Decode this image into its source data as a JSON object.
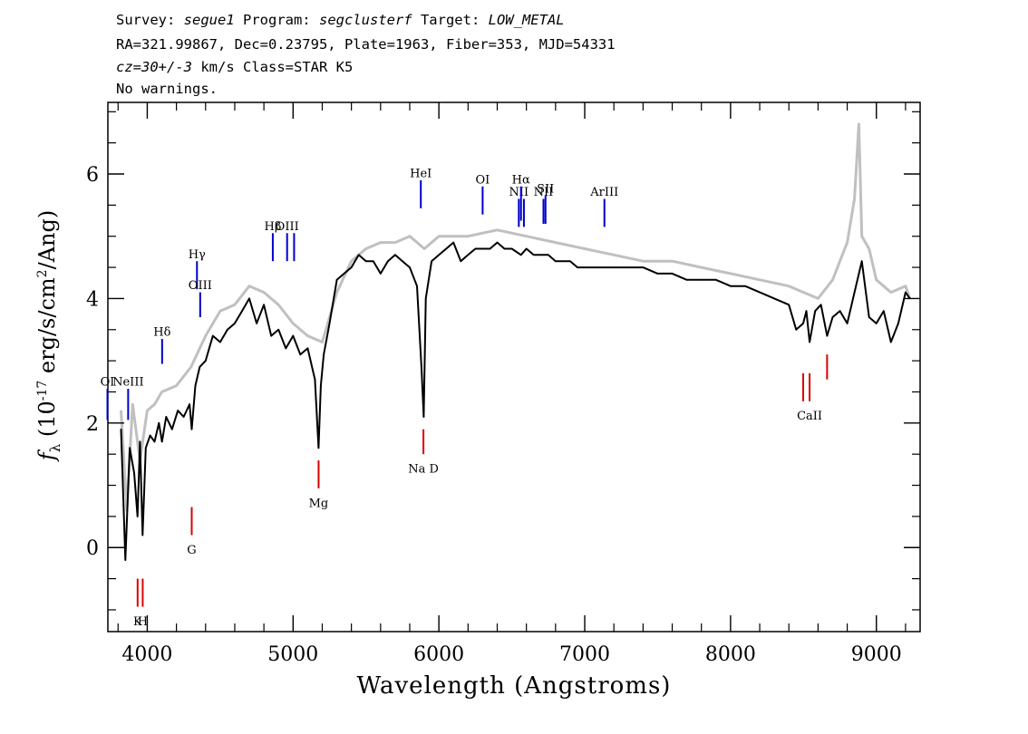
{
  "header": {
    "line1": {
      "survey_label": "Survey: ",
      "survey": "segue1",
      "program_label": " Program: ",
      "program": "segclusterf",
      "target_label": " Target: ",
      "target": "LOW_METAL"
    },
    "line2": "RA=321.99867, Dec=0.23795, Plate=1963, Fiber=353, MJD=54331",
    "line3": {
      "cz": "cz=30+/-3",
      "rest": " km/s Class=STAR K5"
    },
    "line4": "No warnings."
  },
  "colors": {
    "flux": "#000000",
    "noise": "#c0c0c0",
    "emission": "#0000cc",
    "absorption": "#dd0000",
    "axes": "#000000"
  },
  "chart_data": {
    "type": "line",
    "xlabel": "Wavelength (Angstroms)",
    "ylabel": {
      "prefix": "f",
      "subscript": "λ",
      "unit_pre": " (10",
      "exp": "-17",
      "unit_mid": " erg/s/cm",
      "exp2": "2",
      "unit_post": "/Ang)"
    },
    "xlim": [
      3730,
      9300
    ],
    "ylim": [
      -1.35,
      7.15
    ],
    "x_ticks": [
      4000,
      5000,
      6000,
      7000,
      8000,
      9000
    ],
    "y_ticks": [
      0,
      2,
      4,
      6
    ],
    "series": [
      {
        "role": "flux",
        "x": [
          3820,
          3850,
          3880,
          3910,
          3933,
          3950,
          3968,
          3990,
          4020,
          4050,
          4080,
          4101,
          4130,
          4170,
          4210,
          4250,
          4290,
          4305,
          4330,
          4360,
          4400,
          4450,
          4500,
          4550,
          4600,
          4650,
          4700,
          4750,
          4800,
          4850,
          4900,
          4950,
          5000,
          5050,
          5100,
          5150,
          5175,
          5190,
          5210,
          5250,
          5300,
          5350,
          5400,
          5450,
          5500,
          5550,
          5600,
          5650,
          5700,
          5750,
          5800,
          5850,
          5880,
          5896,
          5910,
          5950,
          6000,
          6050,
          6100,
          6150,
          6200,
          6250,
          6300,
          6350,
          6400,
          6450,
          6500,
          6563,
          6600,
          6650,
          6700,
          6750,
          6800,
          6850,
          6900,
          6950,
          7000,
          7100,
          7200,
          7300,
          7400,
          7500,
          7600,
          7700,
          7800,
          7900,
          8000,
          8100,
          8200,
          8300,
          8400,
          8450,
          8498,
          8520,
          8542,
          8580,
          8620,
          8662,
          8700,
          8750,
          8800,
          8850,
          8900,
          8950,
          9000,
          9050,
          9100,
          9150,
          9200,
          9230
        ],
        "y": [
          1.9,
          -0.2,
          1.6,
          1.2,
          0.5,
          1.7,
          0.2,
          1.6,
          1.8,
          1.7,
          2.0,
          1.7,
          2.1,
          1.9,
          2.2,
          2.1,
          2.3,
          1.9,
          2.6,
          2.9,
          3.0,
          3.4,
          3.3,
          3.5,
          3.6,
          3.8,
          4.0,
          3.6,
          3.9,
          3.4,
          3.5,
          3.2,
          3.4,
          3.1,
          3.2,
          2.7,
          1.6,
          2.6,
          3.1,
          3.6,
          4.3,
          4.4,
          4.5,
          4.7,
          4.6,
          4.6,
          4.4,
          4.6,
          4.7,
          4.6,
          4.5,
          4.2,
          2.9,
          2.1,
          4.0,
          4.6,
          4.7,
          4.8,
          4.9,
          4.6,
          4.7,
          4.8,
          4.8,
          4.8,
          4.9,
          4.8,
          4.8,
          4.7,
          4.8,
          4.7,
          4.7,
          4.7,
          4.6,
          4.6,
          4.6,
          4.5,
          4.5,
          4.5,
          4.5,
          4.5,
          4.5,
          4.4,
          4.4,
          4.3,
          4.3,
          4.3,
          4.2,
          4.2,
          4.1,
          4.0,
          3.9,
          3.5,
          3.6,
          3.8,
          3.3,
          3.8,
          3.9,
          3.4,
          3.7,
          3.8,
          3.6,
          4.1,
          4.6,
          3.7,
          3.6,
          3.8,
          3.3,
          3.6,
          4.1,
          4.0
        ]
      },
      {
        "role": "noise",
        "x": [
          3820,
          3860,
          3900,
          3950,
          4000,
          4050,
          4100,
          4200,
          4300,
          4400,
          4500,
          4600,
          4700,
          4800,
          4900,
          5000,
          5100,
          5200,
          5300,
          5400,
          5500,
          5600,
          5700,
          5800,
          5900,
          6000,
          6200,
          6400,
          6600,
          6800,
          7000,
          7200,
          7400,
          7600,
          7800,
          8000,
          8200,
          8400,
          8500,
          8600,
          8700,
          8800,
          8850,
          8880,
          8900,
          8950,
          9000,
          9100,
          9200,
          9230
        ],
        "y": [
          2.2,
          0.6,
          2.3,
          1.4,
          2.2,
          2.3,
          2.5,
          2.6,
          2.9,
          3.4,
          3.8,
          3.9,
          4.2,
          4.1,
          3.9,
          3.6,
          3.4,
          3.3,
          4.1,
          4.6,
          4.8,
          4.9,
          4.9,
          5.0,
          4.8,
          5.0,
          5.0,
          5.1,
          5.0,
          4.9,
          4.8,
          4.7,
          4.6,
          4.6,
          4.5,
          4.4,
          4.3,
          4.2,
          4.1,
          4.0,
          4.3,
          4.9,
          5.6,
          6.8,
          5.0,
          4.8,
          4.3,
          4.1,
          4.2,
          4.0
        ]
      }
    ],
    "lines": [
      {
        "label": "OI",
        "x": 3727,
        "kind": "emission",
        "ymin": 2.05,
        "ymax": 2.55,
        "label_y": 2.6
      },
      {
        "label": "NeIII",
        "x": 3869,
        "kind": "emission",
        "ymin": 2.05,
        "ymax": 2.55,
        "label_y": 2.6
      },
      {
        "label": "Hδ",
        "x": 4102,
        "kind": "emission",
        "ymin": 2.95,
        "ymax": 3.35,
        "label_y": 3.4
      },
      {
        "label": "Hγ",
        "x": 4341,
        "kind": "emission",
        "ymin": 4.15,
        "ymax": 4.6,
        "label_y": 4.65
      },
      {
        "label": "OIII",
        "x": 4363,
        "kind": "emission",
        "ymin": 3.7,
        "ymax": 4.1,
        "label_y": 4.15
      },
      {
        "label": "Hβ",
        "x": 4861,
        "kind": "emission",
        "ymin": 4.6,
        "ymax": 5.05,
        "label_y": 5.1
      },
      {
        "label": "OIII",
        "x": 4959,
        "kind": "emission",
        "ymin": 4.6,
        "ymax": 5.05,
        "label_y": 5.1
      },
      {
        "label": "",
        "x": 5007,
        "kind": "emission",
        "ymin": 4.6,
        "ymax": 5.05,
        "label_y": 5.1
      },
      {
        "label": "HeI",
        "x": 5876,
        "kind": "emission",
        "ymin": 5.45,
        "ymax": 5.9,
        "label_y": 5.95
      },
      {
        "label": "OI",
        "x": 6300,
        "kind": "emission",
        "ymin": 5.35,
        "ymax": 5.8,
        "label_y": 5.85
      },
      {
        "label": "NII",
        "x": 6548,
        "kind": "emission",
        "ymin": 5.15,
        "ymax": 5.6,
        "label_y": 5.65
      },
      {
        "label": "Hα",
        "x": 6563,
        "kind": "emission",
        "ymin": 5.25,
        "ymax": 5.8,
        "label_y": 5.85
      },
      {
        "label": "",
        "x": 6583,
        "kind": "emission",
        "ymin": 5.15,
        "ymax": 5.6,
        "label_y": 5.65
      },
      {
        "label": "NII",
        "x": 6717,
        "kind": "emission",
        "ymin": 5.2,
        "ymax": 5.6,
        "label_y": 5.65
      },
      {
        "label": "SII",
        "x": 6731,
        "kind": "emission",
        "ymin": 5.2,
        "ymax": 5.65,
        "label_y": 5.7
      },
      {
        "label": "ArIII",
        "x": 7135,
        "kind": "emission",
        "ymin": 5.15,
        "ymax": 5.6,
        "label_y": 5.65
      },
      {
        "label": "K",
        "x": 3934,
        "kind": "absorption",
        "ymin": -0.95,
        "ymax": -0.5,
        "label_y": -1.1
      },
      {
        "label": "H",
        "x": 3969,
        "kind": "absorption",
        "ymin": -0.95,
        "ymax": -0.5,
        "label_y": -1.1
      },
      {
        "label": "G",
        "x": 4305,
        "kind": "absorption",
        "ymin": 0.2,
        "ymax": 0.65,
        "label_y": 0.05
      },
      {
        "label": "Mg",
        "x": 5175,
        "kind": "absorption",
        "ymin": 0.95,
        "ymax": 1.4,
        "label_y": 0.8
      },
      {
        "label": "Na D",
        "x": 5894,
        "kind": "absorption",
        "ymin": 1.5,
        "ymax": 1.9,
        "label_y": 1.35
      },
      {
        "label": "",
        "x": 8498,
        "kind": "absorption",
        "ymin": 2.35,
        "ymax": 2.8,
        "label_y": 2.2
      },
      {
        "label": "CaII",
        "x": 8542,
        "kind": "absorption",
        "ymin": 2.35,
        "ymax": 2.8,
        "label_y": 2.2
      },
      {
        "label": "",
        "x": 8662,
        "kind": "absorption",
        "ymin": 2.7,
        "ymax": 3.1,
        "label_y": 2.55
      }
    ]
  }
}
